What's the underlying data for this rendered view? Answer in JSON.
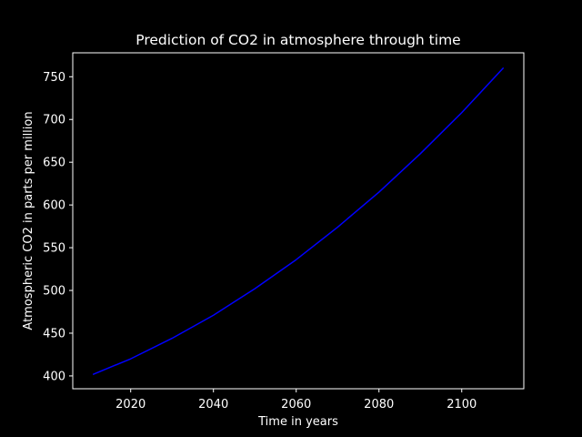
{
  "chart_data": {
    "type": "line",
    "title": "Prediction of CO2 in atmosphere through time",
    "xlabel": "Time in years",
    "ylabel": "Atmospheric CO2 in parts per million",
    "xlim": [
      2006,
      2115
    ],
    "ylim": [
      385,
      778
    ],
    "xticks": [
      2020,
      2040,
      2060,
      2080,
      2100
    ],
    "yticks": [
      400,
      450,
      500,
      550,
      600,
      650,
      700,
      750
    ],
    "grid": false,
    "legend": "none",
    "series": [
      {
        "color": "#0000ff",
        "x": [
          2011,
          2020,
          2030,
          2040,
          2050,
          2060,
          2070,
          2080,
          2090,
          2100,
          2110
        ],
        "y": [
          402,
          420,
          444,
          471,
          502,
          536,
          574,
          615,
          660,
          708,
          760
        ]
      }
    ]
  },
  "colors": {
    "background": "#000000",
    "foreground": "#ffffff",
    "line": "#0000ff"
  }
}
